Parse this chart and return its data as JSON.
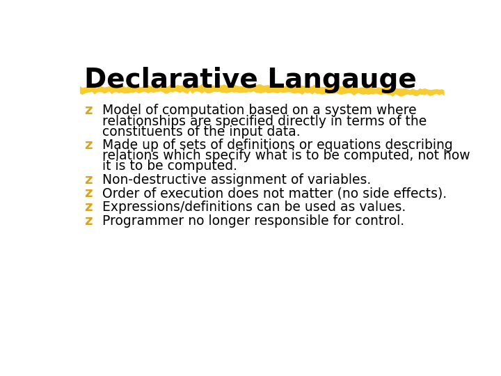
{
  "title": "Declarative Langauge",
  "title_color": "#000000",
  "title_fontsize": 28,
  "title_fontweight": "bold",
  "background_color": "#ffffff",
  "bullet_color": "#DAA520",
  "text_color": "#000000",
  "text_fontsize": 13.5,
  "bullets": [
    {
      "lines": [
        "Model of computation based on a system where",
        "relationships are specified directly in terms of the",
        "constituents of the input data."
      ]
    },
    {
      "lines": [
        "Made up of sets of definitions or equations describing",
        "relations which specify what is to be computed, not how",
        "it is to be computed."
      ]
    },
    {
      "lines": [
        "Non-destructive assignment of variables."
      ]
    },
    {
      "lines": [
        "Order of execution does not matter (no side effects)."
      ]
    },
    {
      "lines": [
        "Expressions/definitions can be used as values."
      ]
    },
    {
      "lines": [
        "Programmer no longer responsible for control."
      ]
    }
  ]
}
